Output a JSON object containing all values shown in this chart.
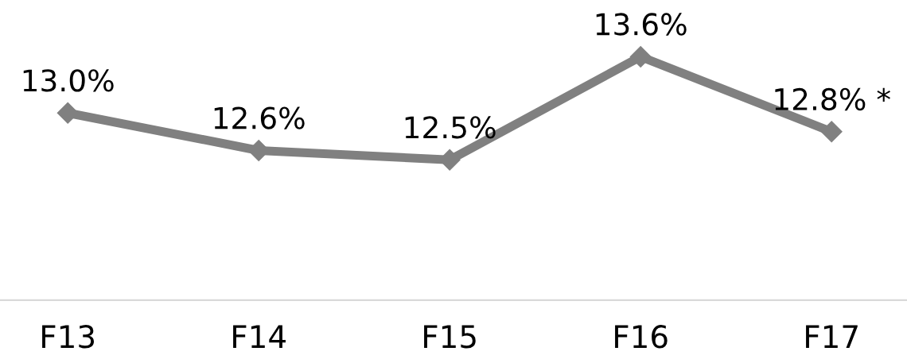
{
  "chart_data": {
    "type": "line",
    "categories": [
      "F13",
      "F14",
      "F15",
      "F16",
      "F17"
    ],
    "series": [
      {
        "color": "#808080",
        "values": [
          13.0,
          12.6,
          12.5,
          13.6,
          12.8
        ],
        "value_labels": [
          "13.0%",
          "12.6%",
          "12.5%",
          "13.6%",
          "12.8% *"
        ]
      }
    ],
    "tick_labels": "x",
    "marker": "diamond",
    "line_style": "solid",
    "grid": false,
    "legend": false
  }
}
